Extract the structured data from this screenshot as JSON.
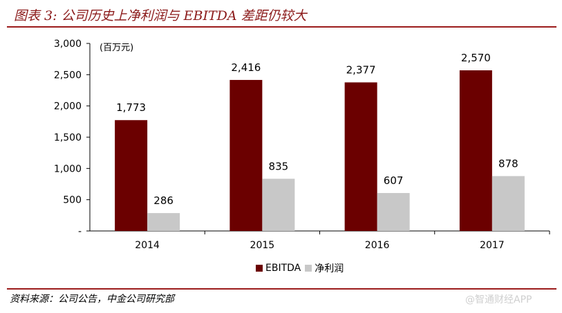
{
  "header": {
    "title": "图表 3: 公司历史上净利润与 EBITDA 差距仍较大"
  },
  "footer": {
    "source": "资料来源：公司公告，中金公司研究部",
    "watermark": "@智通财经APP"
  },
  "chart_data": {
    "type": "bar",
    "unit_label": "(百万元)",
    "categories": [
      "2014",
      "2015",
      "2016",
      "2017"
    ],
    "series": [
      {
        "name": "EBITDA",
        "color": "#6b0000",
        "values": [
          1773,
          2416,
          2377,
          2570
        ],
        "labels": [
          "1,773",
          "2,416",
          "2,377",
          "2,570"
        ]
      },
      {
        "name": "净利润",
        "color": "#c8c8c8",
        "values": [
          286,
          835,
          607,
          878
        ],
        "labels": [
          "286",
          "835",
          "607",
          "878"
        ]
      }
    ],
    "ylim": [
      0,
      3000
    ],
    "yticks": [
      0,
      500,
      1000,
      1500,
      2000,
      2500,
      3000
    ],
    "ytick_labels": [
      "-",
      "500",
      "1,000",
      "1,500",
      "2,000",
      "2,500",
      "3,000"
    ],
    "grid": false,
    "legend_position": "bottom-center",
    "colors": {
      "title": "#8b1a1a",
      "rule": "#9b1b1b"
    }
  }
}
